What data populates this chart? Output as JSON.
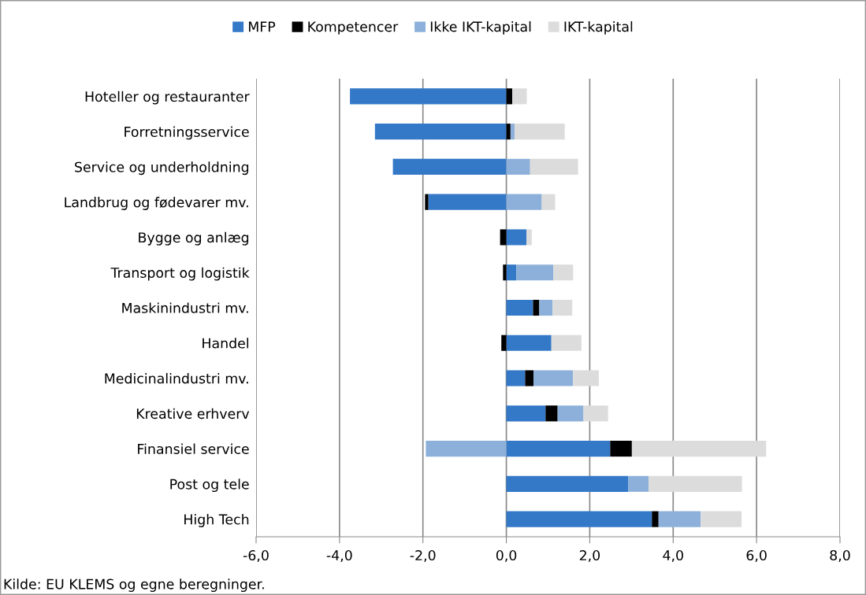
{
  "chart_data": {
    "type": "bar",
    "orientation": "horizontal",
    "stacked": true,
    "categories": [
      "Hoteller og restauranter",
      "Forretningsservice",
      "Service og underholdning",
      "Landbrug og fødevarer mv.",
      "Bygge og anlæg",
      "Transport og logistik",
      "Maskinindustri mv.",
      "Handel",
      "Medicinalindustri mv.",
      "Kreative erhverv",
      "Finansiel service",
      "Post og tele",
      "High Tech"
    ],
    "series": [
      {
        "name": "MFP",
        "color": "#3478c8",
        "values": [
          -3.75,
          -3.15,
          -2.72,
          -1.87,
          0.48,
          0.24,
          0.64,
          1.08,
          0.45,
          0.94,
          2.49,
          2.92,
          3.49
        ]
      },
      {
        "name": "Kompetencer",
        "color": "#000000",
        "values": [
          0.14,
          0.1,
          0,
          -0.08,
          -0.15,
          -0.08,
          0.15,
          -0.12,
          0.2,
          0.29,
          0.52,
          0,
          0.16
        ]
      },
      {
        "name": "Ikke IKT-kapital",
        "color": "#8db0da",
        "values": [
          0,
          0.1,
          0.57,
          0.85,
          0,
          0.89,
          0.32,
          0,
          0.95,
          0.62,
          -1.93,
          0.49,
          1.01
        ]
      },
      {
        "name": "IKT-kapital",
        "color": "#dcdcdc",
        "values": [
          0.35,
          1.2,
          1.15,
          0.32,
          0.13,
          0.47,
          0.47,
          0.72,
          0.62,
          0.59,
          3.22,
          2.24,
          0.98
        ]
      }
    ],
    "xlim": [
      -6,
      8
    ],
    "xticks": [
      {
        "value": -6,
        "label": "-6,0"
      },
      {
        "value": -4,
        "label": "-4,0"
      },
      {
        "value": -2,
        "label": "-2,0"
      },
      {
        "value": 0,
        "label": "0,0"
      },
      {
        "value": 2,
        "label": "2,0"
      },
      {
        "value": 4,
        "label": "4,0"
      },
      {
        "value": 6,
        "label": "6,0"
      },
      {
        "value": 8,
        "label": "8,0"
      }
    ],
    "grid": "x",
    "legend": "top",
    "annotations": [
      "Kilde: EU KLEMS og egne beregninger."
    ]
  }
}
